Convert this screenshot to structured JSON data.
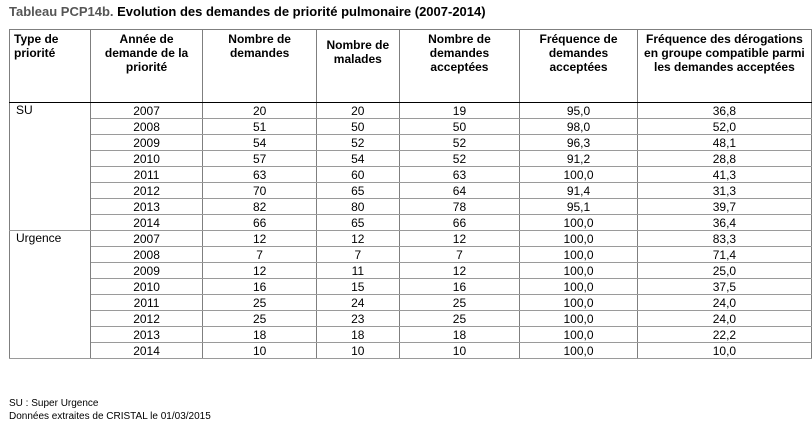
{
  "title": {
    "prefix": "Tableau PCP14b.",
    "text": "Evolution des demandes de priorité pulmonaire (2007-2014)"
  },
  "columns": [
    "Type de priorité",
    "Année de demande de la priorité",
    "Nombre de demandes",
    "Nombre de malades",
    "Nombre de demandes acceptées",
    "Fréquence de demandes acceptées",
    "Fréquence des dérogations en groupe compatible parmi les demandes acceptées"
  ],
  "groups": [
    {
      "type": "SU",
      "rows": [
        [
          "2007",
          "20",
          "20",
          "19",
          "95,0",
          "36,8"
        ],
        [
          "2008",
          "51",
          "50",
          "50",
          "98,0",
          "52,0"
        ],
        [
          "2009",
          "54",
          "52",
          "52",
          "96,3",
          "48,1"
        ],
        [
          "2010",
          "57",
          "54",
          "52",
          "91,2",
          "28,8"
        ],
        [
          "2011",
          "63",
          "60",
          "63",
          "100,0",
          "41,3"
        ],
        [
          "2012",
          "70",
          "65",
          "64",
          "91,4",
          "31,3"
        ],
        [
          "2013",
          "82",
          "80",
          "78",
          "95,1",
          "39,7"
        ],
        [
          "2014",
          "66",
          "65",
          "66",
          "100,0",
          "36,4"
        ]
      ]
    },
    {
      "type": "Urgence",
      "rows": [
        [
          "2007",
          "12",
          "12",
          "12",
          "100,0",
          "83,3"
        ],
        [
          "2008",
          "7",
          "7",
          "7",
          "100,0",
          "71,4"
        ],
        [
          "2009",
          "12",
          "11",
          "12",
          "100,0",
          "25,0"
        ],
        [
          "2010",
          "16",
          "15",
          "16",
          "100,0",
          "37,5"
        ],
        [
          "2011",
          "25",
          "24",
          "25",
          "100,0",
          "24,0"
        ],
        [
          "2012",
          "25",
          "23",
          "25",
          "100,0",
          "24,0"
        ],
        [
          "2013",
          "18",
          "18",
          "18",
          "100,0",
          "22,2"
        ],
        [
          "2014",
          "10",
          "10",
          "10",
          "100,0",
          "10,0"
        ]
      ]
    }
  ],
  "footnotes": [
    "SU : Super Urgence",
    "Données extraites de CRISTAL le 01/03/2015"
  ],
  "colors": {
    "text": "#000000",
    "title_prefix": "#555555",
    "grid": "#7f7f7f"
  }
}
